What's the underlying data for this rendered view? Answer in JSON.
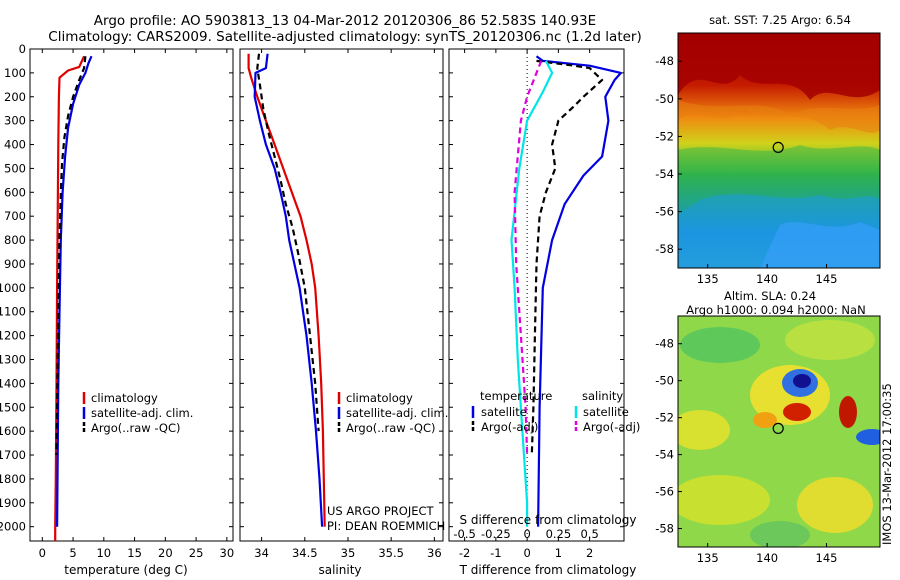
{
  "titles": {
    "line1": "Argo profile: AO 5903813_13 04-Mar-2012 20120306_86 52.583S 140.93E",
    "line2": "Climatology: CARS2009. Satellite-adjusted climatology: synTS_20120306.nc (1.2d later)"
  },
  "right": {
    "sst_title": "sat. SST: 7.25 Argo: 6.54",
    "sla_title1": "Altim. SLA: 0.24",
    "sla_title2": "Argo h1000: 0.094 h2000: NaN",
    "stamp": "IMOS 13-Mar-2012 17:00:35"
  },
  "credits": {
    "line1": "US ARGO PROJECT",
    "line2": "PI: DEAN ROEMMICH"
  },
  "colors": {
    "climatology": "#e00000",
    "satellite": "#0000e0",
    "argo": "#000000",
    "sal_sat": "#00e5e5",
    "sal_argo": "#e000e0"
  },
  "chart_data": [
    {
      "type": "line",
      "xlabel": "temperature (deg C)",
      "ylabel": "",
      "xlim": [
        -2,
        31
      ],
      "ylim": [
        2060,
        0
      ],
      "xticks": [
        0,
        5,
        10,
        15,
        20,
        25,
        30
      ],
      "yticks": [
        0,
        100,
        200,
        300,
        400,
        500,
        600,
        700,
        800,
        900,
        1000,
        1100,
        1200,
        1300,
        1400,
        1500,
        1600,
        1700,
        1800,
        1900,
        2000
      ],
      "legend": [
        "climatology",
        "satellite-adj. clim.",
        "Argo(..raw -QC)"
      ],
      "series": [
        {
          "name": "climatology",
          "color": "#e00000",
          "dash": "",
          "points": [
            [
              6.8,
              30
            ],
            [
              6.0,
              75
            ],
            [
              4.2,
              90
            ],
            [
              2.8,
              120
            ],
            [
              2.7,
              200
            ],
            [
              2.6,
              400
            ],
            [
              2.5,
              700
            ],
            [
              2.4,
              1000
            ],
            [
              2.3,
              1400
            ],
            [
              2.2,
              1800
            ],
            [
              2.1,
              2000
            ],
            [
              2.1,
              2060
            ]
          ]
        },
        {
          "name": "satellite-adj. clim.",
          "color": "#0000e0",
          "dash": "",
          "points": [
            [
              8.0,
              30
            ],
            [
              7.5,
              60
            ],
            [
              7.0,
              100
            ],
            [
              6.0,
              150
            ],
            [
              5.0,
              230
            ],
            [
              4.2,
              330
            ],
            [
              3.7,
              450
            ],
            [
              3.3,
              600
            ],
            [
              3.0,
              800
            ],
            [
              2.8,
              1100
            ],
            [
              2.6,
              1400
            ],
            [
              2.5,
              1700
            ],
            [
              2.4,
              2000
            ]
          ]
        },
        {
          "name": "Argo(..raw -QC)",
          "color": "#000000",
          "dash": "6,4",
          "points": [
            [
              7.0,
              30
            ],
            [
              6.8,
              80
            ],
            [
              6.0,
              130
            ],
            [
              5.0,
              200
            ],
            [
              4.2,
              280
            ],
            [
              3.6,
              370
            ],
            [
              3.2,
              480
            ],
            [
              3.0,
              600
            ],
            [
              2.8,
              800
            ],
            [
              2.6,
              1050
            ],
            [
              2.5,
              1300
            ],
            [
              2.4,
              1500
            ],
            [
              2.3,
              1700
            ]
          ]
        }
      ]
    },
    {
      "type": "line",
      "xlabel": "salinity",
      "xlim": [
        33.75,
        36.1
      ],
      "ylim": [
        2060,
        0
      ],
      "xticks": [
        34,
        34.5,
        35,
        35.5,
        36
      ],
      "legend": [
        "climatology",
        "satellite-adj. clim.",
        "Argo(..raw -QC)"
      ],
      "series": [
        {
          "name": "climatology",
          "color": "#e00000",
          "dash": "",
          "points": [
            [
              33.85,
              20
            ],
            [
              33.85,
              80
            ],
            [
              33.88,
              120
            ],
            [
              33.95,
              200
            ],
            [
              34.05,
              300
            ],
            [
              34.15,
              400
            ],
            [
              34.25,
              500
            ],
            [
              34.35,
              600
            ],
            [
              34.45,
              700
            ],
            [
              34.52,
              800
            ],
            [
              34.58,
              900
            ],
            [
              34.62,
              1000
            ],
            [
              34.66,
              1200
            ],
            [
              34.69,
              1400
            ],
            [
              34.71,
              1600
            ],
            [
              34.72,
              1800
            ],
            [
              34.73,
              2000
            ]
          ]
        },
        {
          "name": "satellite-adj. clim.",
          "color": "#0000e0",
          "dash": "",
          "points": [
            [
              34.07,
              20
            ],
            [
              34.05,
              80
            ],
            [
              33.93,
              100
            ],
            [
              33.92,
              200
            ],
            [
              33.98,
              300
            ],
            [
              34.05,
              400
            ],
            [
              34.15,
              500
            ],
            [
              34.22,
              600
            ],
            [
              34.28,
              700
            ],
            [
              34.32,
              800
            ],
            [
              34.38,
              900
            ],
            [
              34.44,
              1000
            ],
            [
              34.52,
              1200
            ],
            [
              34.58,
              1400
            ],
            [
              34.63,
              1600
            ],
            [
              34.67,
              1800
            ],
            [
              34.7,
              2000
            ]
          ]
        },
        {
          "name": "Argo(..raw -QC)",
          "color": "#000000",
          "dash": "6,4",
          "points": [
            [
              33.97,
              20
            ],
            [
              33.95,
              80
            ],
            [
              33.98,
              150
            ],
            [
              34.02,
              250
            ],
            [
              34.08,
              350
            ],
            [
              34.15,
              450
            ],
            [
              34.22,
              550
            ],
            [
              34.28,
              650
            ],
            [
              34.36,
              750
            ],
            [
              34.42,
              850
            ],
            [
              34.5,
              1000
            ],
            [
              34.56,
              1200
            ],
            [
              34.62,
              1400
            ],
            [
              34.66,
              1600
            ]
          ]
        }
      ]
    },
    {
      "type": "line",
      "xlabel": "T difference from climatology",
      "top_label": "S difference from climatology",
      "xlim": [
        -2.5,
        3.1
      ],
      "ylim": [
        2060,
        0
      ],
      "xticks": [
        -2,
        -1,
        0,
        1,
        2
      ],
      "top_ticks": [
        {
          "label": "-0.5",
          "t": -2
        },
        {
          "label": "-0.25",
          "t": -1
        },
        {
          "label": "0",
          "t": 0
        },
        {
          "label": "0.25",
          "t": 1
        },
        {
          "label": "0.5",
          "t": 2
        }
      ],
      "legend_headers": [
        "temperature",
        "salinity"
      ],
      "legend": [
        "satellite",
        "Argo(-adj)",
        "satellite",
        "Argo(-adj)"
      ],
      "series": [
        {
          "name": "satellite",
          "color": "#0000e0",
          "dash": "",
          "points": [
            [
              0.3,
              30
            ],
            [
              0.5,
              50
            ],
            [
              2.0,
              70
            ],
            [
              3.0,
              100
            ],
            [
              2.8,
              130
            ],
            [
              2.5,
              200
            ],
            [
              2.6,
              300
            ],
            [
              2.4,
              450
            ],
            [
              1.8,
              530
            ],
            [
              1.2,
              650
            ],
            [
              0.8,
              800
            ],
            [
              0.5,
              1000
            ],
            [
              0.4,
              1500
            ],
            [
              0.35,
              2000
            ]
          ]
        },
        {
          "name": "Argo(-adj)",
          "color": "#000000",
          "dash": "6,4",
          "points": [
            [
              0.3,
              50
            ],
            [
              1.5,
              70
            ],
            [
              2.0,
              80
            ],
            [
              2.4,
              130
            ],
            [
              1.8,
              200
            ],
            [
              1.5,
              240
            ],
            [
              1.0,
              300
            ],
            [
              0.8,
              400
            ],
            [
              0.9,
              500
            ],
            [
              0.6,
              600
            ],
            [
              0.4,
              700
            ],
            [
              0.3,
              900
            ],
            [
              0.25,
              1200
            ],
            [
              0.2,
              1500
            ],
            [
              0.15,
              1700
            ]
          ]
        },
        {
          "name": "salinity satellite",
          "color": "#00e5e5",
          "dash": "",
          "points": [
            [
              0.6,
              50
            ],
            [
              0.8,
              100
            ],
            [
              0.5,
              180
            ],
            [
              0.0,
              300
            ],
            [
              -0.25,
              500
            ],
            [
              -0.5,
              800
            ],
            [
              -0.4,
              1000
            ],
            [
              -0.3,
              1300
            ],
            [
              -0.15,
              1600
            ],
            [
              0.0,
              1900
            ],
            [
              0.0,
              2000
            ]
          ]
        },
        {
          "name": "salinity Argo(-adj)",
          "color": "#e000e0",
          "dash": "6,4",
          "points": [
            [
              0.45,
              50
            ],
            [
              0.3,
              100
            ],
            [
              0.0,
              200
            ],
            [
              -0.2,
              300
            ],
            [
              -0.4,
              600
            ],
            [
              -0.35,
              900
            ],
            [
              -0.2,
              1200
            ],
            [
              -0.05,
              1500
            ],
            [
              0.0,
              1700
            ]
          ]
        }
      ]
    },
    {
      "type": "heatmap",
      "title": "sat. SST: 7.25 Argo: 6.54",
      "xlim": [
        132.5,
        149.5
      ],
      "ylim": [
        -59,
        -46.5
      ],
      "xticks": [
        135,
        140,
        145
      ],
      "yticks": [
        -48,
        -50,
        -52,
        -54,
        -56,
        -58
      ],
      "marker": {
        "lon": 140.93,
        "lat": -52.583
      }
    },
    {
      "type": "heatmap",
      "title": "Altim. SLA: 0.24 / Argo h1000: 0.094 h2000: NaN",
      "xlim": [
        132.5,
        149.5
      ],
      "ylim": [
        -59,
        -46.5
      ],
      "xticks": [
        135,
        140,
        145
      ],
      "yticks": [
        -48,
        -50,
        -52,
        -54,
        -56,
        -58
      ],
      "marker": {
        "lon": 140.93,
        "lat": -52.583
      }
    }
  ]
}
